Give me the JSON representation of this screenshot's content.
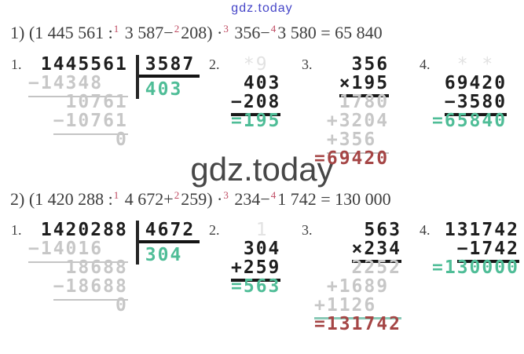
{
  "page": {
    "top_watermark": "gdz.today",
    "center_watermark": "gdz.today"
  },
  "colors": {
    "result_green": "#4fbd97",
    "result_red": "#a54545",
    "faint_gray": "#c7c7c7",
    "ink": "#1e1e1e",
    "superscript_red": "#bf4b62",
    "watermark_blue": "#4545c8",
    "watermark_gray": "#474747",
    "teal_rule": "#89c9b6"
  },
  "equations": [
    {
      "parts": [
        {
          "t": "1) (1 445 561 :"
        },
        {
          "sup": "1"
        },
        {
          "t": " 3 587−"
        },
        {
          "sup": "2"
        },
        {
          "t": "208) ·"
        },
        {
          "sup": "3"
        },
        {
          "t": " 356−"
        },
        {
          "sup": "4"
        },
        {
          "t": "3 580 = 65 840"
        }
      ]
    },
    {
      "parts": [
        {
          "t": "2) (1 420 288 :"
        },
        {
          "sup": "1"
        },
        {
          "t": " 4 672+"
        },
        {
          "sup": "2"
        },
        {
          "t": "259) ·"
        },
        {
          "sup": "3"
        },
        {
          "t": " 234−"
        },
        {
          "sup": "4"
        },
        {
          "t": "1 742 = 130 000"
        }
      ]
    }
  ],
  "rows": [
    {
      "steps": [
        {
          "label": "1.",
          "type": "division",
          "left": [
            {
              "pad": " ",
              "text": "1445561",
              "style": "bold"
            },
            {
              "pad": "",
              "text": "−14348  ",
              "style": "faint",
              "line": "gray"
            },
            {
              "pad": "   ",
              "text": "10761",
              "style": "faint"
            },
            {
              "pad": "  ",
              "text": "−10761",
              "style": "faint",
              "line": "gray"
            },
            {
              "pad": "       ",
              "text": "0",
              "style": "faint"
            }
          ],
          "divisor": "3587",
          "quotient": "403"
        },
        {
          "label": "2.",
          "type": "column",
          "lines": [
            {
              "pad": " ",
              "text": "*9",
              "style": "ghost"
            },
            {
              "pad": " ",
              "text": "403",
              "style": "bold"
            },
            {
              "pad": "",
              "text": "−208",
              "style": "bold",
              "line": "dark"
            },
            {
              "pad": "",
              "text": "=195",
              "style": "green"
            }
          ]
        },
        {
          "label": "3.",
          "type": "column",
          "lines": [
            {
              "pad": "   ",
              "text": "356",
              "style": "bold"
            },
            {
              "pad": "  ",
              "text": "×195",
              "style": "bold",
              "line": "dark"
            },
            {
              "pad": "  ",
              "text": "1780",
              "style": "faint"
            },
            {
              "pad": " ",
              "text": "+3204",
              "style": "faint"
            },
            {
              "pad": " ",
              "text": "+356 ",
              "style": "faint",
              "line": "gray"
            },
            {
              "pad": "",
              "text": "=69420",
              "style": "red"
            }
          ]
        },
        {
          "label": "4.",
          "type": "column",
          "lines": [
            {
              "pad": "  ",
              "text": "* *",
              "style": "ghost"
            },
            {
              "pad": " ",
              "text": "69420",
              "style": "bold"
            },
            {
              "pad": " ",
              "text": "−3580",
              "style": "bold",
              "line": "dark"
            },
            {
              "pad": "",
              "text": "=65840",
              "style": "green"
            }
          ]
        }
      ]
    },
    {
      "steps": [
        {
          "label": "1.",
          "type": "division",
          "left": [
            {
              "pad": " ",
              "text": "1420288",
              "style": "bold"
            },
            {
              "pad": "",
              "text": "−14016  ",
              "style": "faint",
              "line": "gray"
            },
            {
              "pad": "   ",
              "text": "18688",
              "style": "faint"
            },
            {
              "pad": "  ",
              "text": "−18688",
              "style": "faint",
              "line": "gray"
            },
            {
              "pad": "       ",
              "text": "0",
              "style": "faint"
            }
          ],
          "divisor": "4672",
          "quotient": "304"
        },
        {
          "label": "2.",
          "type": "column",
          "lines": [
            {
              "pad": "  ",
              "text": "1",
              "style": "ghost"
            },
            {
              "pad": " ",
              "text": "304",
              "style": "bold"
            },
            {
              "pad": "",
              "text": "+259",
              "style": "bold",
              "line": "dark"
            },
            {
              "pad": "",
              "text": "=563",
              "style": "green"
            }
          ]
        },
        {
          "label": "3.",
          "type": "column",
          "lines": [
            {
              "pad": "    ",
              "text": "563",
              "style": "bold"
            },
            {
              "pad": "   ",
              "text": "×234",
              "style": "bold",
              "line": "dark"
            },
            {
              "pad": "   ",
              "text": "2252",
              "style": "faint"
            },
            {
              "pad": " ",
              "text": "+1689 ",
              "style": "faint"
            },
            {
              "pad": "",
              "text": "+1126  ",
              "style": "faint",
              "line": "teal"
            },
            {
              "pad": "",
              "text": "=131742",
              "style": "red"
            }
          ]
        },
        {
          "label": "4.",
          "type": "column",
          "lines": [
            {
              "pad": " ",
              "text": "131742",
              "style": "bold"
            },
            {
              "pad": "  ",
              "text": "−1742",
              "style": "bold",
              "line": "dark"
            },
            {
              "pad": "",
              "text": "=130000",
              "style": "green"
            }
          ]
        }
      ]
    }
  ]
}
